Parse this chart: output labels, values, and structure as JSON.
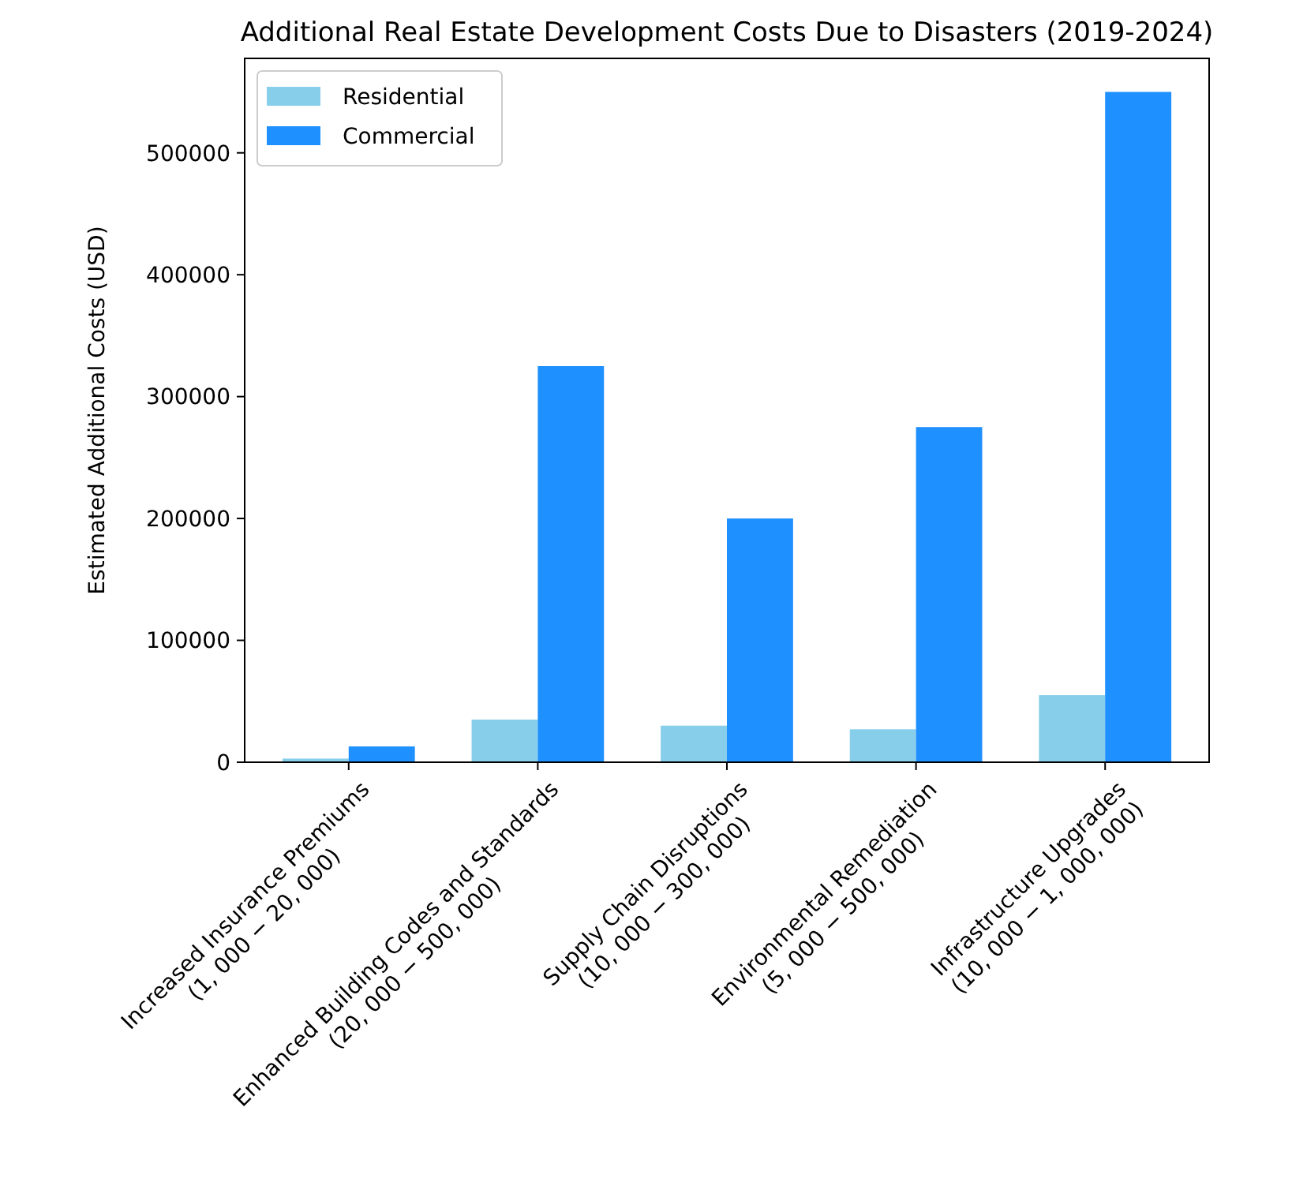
{
  "chart_data": {
    "type": "bar",
    "title": "Additional Real Estate Development Costs Due to Disasters (2019-2024)",
    "ylabel": "Estimated Additional Costs (USD)",
    "categories": [
      "Increased Insurance Premiums\n(1, 000 − 20, 000)",
      "Enhanced Building Codes and Standards\n(20, 000 − 500, 000)",
      "Supply Chain Disruptions\n(10, 000 − 300, 000)",
      "Environmental Remediation\n(5, 000 − 500, 000)",
      "Infrastructure Upgrades\n(10, 000 − 1, 000, 000)"
    ],
    "series": [
      {
        "name": "Residential",
        "color": "#87ceeb",
        "values": [
          3000,
          35000,
          30000,
          27000,
          55000
        ]
      },
      {
        "name": "Commercial",
        "color": "#1e90ff",
        "values": [
          13000,
          325000,
          200000,
          275000,
          550000
        ]
      }
    ],
    "ylim": [
      0,
      577500
    ],
    "yticks": [
      0,
      100000,
      200000,
      300000,
      400000,
      500000
    ],
    "legend": "top left"
  }
}
